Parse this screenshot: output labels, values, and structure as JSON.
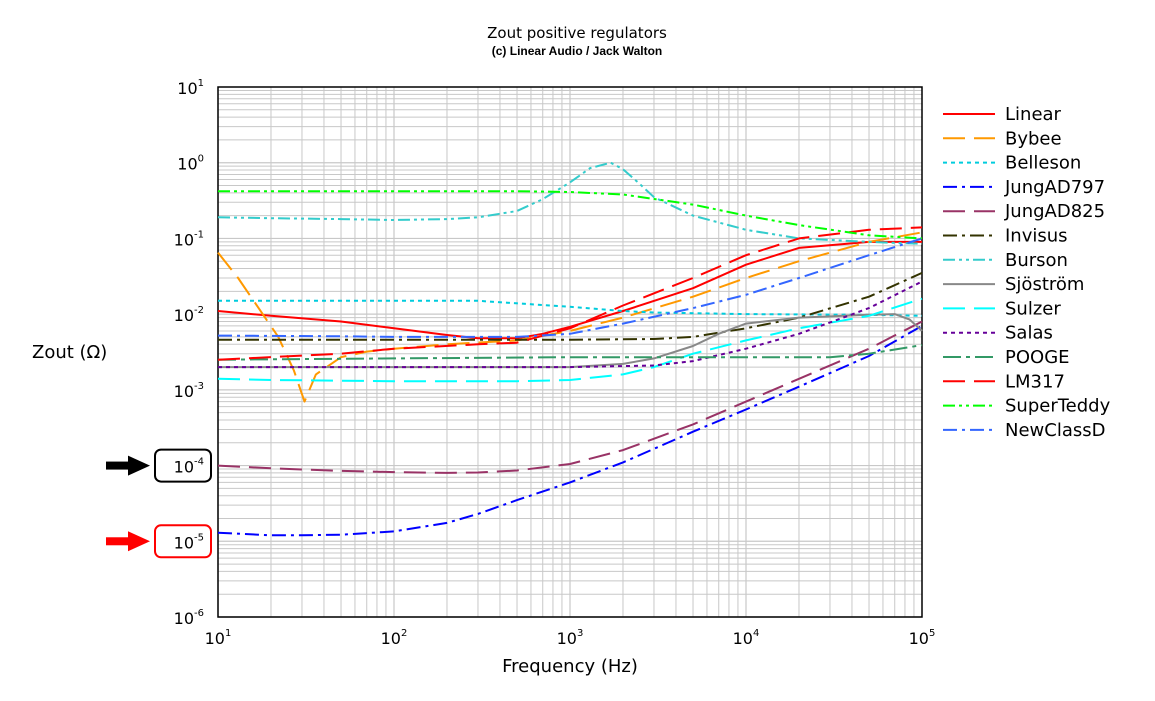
{
  "chart_data": {
    "type": "line",
    "title": "Zout positive regulators",
    "subtitle": "(c) Linear Audio / Jack Walton",
    "xlabel": "Frequency (Hz)",
    "ylabel": "Zout (Ω)",
    "xscale": "log",
    "yscale": "log",
    "xlim": [
      10,
      100000
    ],
    "ylim": [
      1e-06,
      10
    ],
    "grid": true,
    "legend_position": "right",
    "x_ticks": [
      {
        "value": 10,
        "base": "10",
        "exp": "1"
      },
      {
        "value": 100,
        "base": "10",
        "exp": "2"
      },
      {
        "value": 1000,
        "base": "10",
        "exp": "3"
      },
      {
        "value": 10000,
        "base": "10",
        "exp": "4"
      },
      {
        "value": 100000,
        "base": "10",
        "exp": "5"
      }
    ],
    "y_ticks": [
      {
        "value": 10,
        "base": "10",
        "exp": "1"
      },
      {
        "value": 1,
        "base": "10",
        "exp": "0"
      },
      {
        "value": 0.1,
        "base": "10",
        "exp": "-1"
      },
      {
        "value": 0.01,
        "base": "10",
        "exp": "-2"
      },
      {
        "value": 0.001,
        "base": "10",
        "exp": "-3"
      },
      {
        "value": 0.0001,
        "base": "10",
        "exp": "-4"
      },
      {
        "value": 1e-05,
        "base": "10",
        "exp": "-5"
      },
      {
        "value": 1e-06,
        "base": "10",
        "exp": "-6"
      }
    ],
    "highlighted_ticks": [
      {
        "value": 0.0001,
        "color": "#000000"
      },
      {
        "value": 1e-05,
        "color": "#ff0000"
      }
    ],
    "series": [
      {
        "name": "Linear",
        "color": "#ff0000",
        "dash": "solid",
        "points": [
          [
            10,
            0.011
          ],
          [
            20,
            0.0095
          ],
          [
            50,
            0.008
          ],
          [
            100,
            0.0065
          ],
          [
            200,
            0.0053
          ],
          [
            300,
            0.0048
          ],
          [
            500,
            0.0048
          ],
          [
            700,
            0.0055
          ],
          [
            1000,
            0.0068
          ],
          [
            2000,
            0.011
          ],
          [
            5000,
            0.022
          ],
          [
            10000,
            0.045
          ],
          [
            20000,
            0.075
          ],
          [
            50000,
            0.09
          ],
          [
            100000,
            0.09
          ]
        ]
      },
      {
        "name": "Bybee",
        "color": "#ff9900",
        "dash": "longdash",
        "points": [
          [
            10,
            0.065
          ],
          [
            13,
            0.03
          ],
          [
            17,
            0.012
          ],
          [
            22,
            0.005
          ],
          [
            27,
            0.0018
          ],
          [
            31,
            0.0007
          ],
          [
            36,
            0.0016
          ],
          [
            50,
            0.0027
          ],
          [
            70,
            0.0032
          ],
          [
            100,
            0.0035
          ],
          [
            200,
            0.004
          ],
          [
            500,
            0.0045
          ],
          [
            1000,
            0.006
          ],
          [
            2000,
            0.009
          ],
          [
            5000,
            0.017
          ],
          [
            10000,
            0.03
          ],
          [
            20000,
            0.05
          ],
          [
            50000,
            0.09
          ],
          [
            100000,
            0.12
          ]
        ]
      },
      {
        "name": "Belleson",
        "color": "#00ccdd",
        "dash": "dot",
        "points": [
          [
            10,
            0.015
          ],
          [
            100,
            0.015
          ],
          [
            300,
            0.015
          ],
          [
            1000,
            0.0125
          ],
          [
            2000,
            0.011
          ],
          [
            3000,
            0.0105
          ],
          [
            10000,
            0.01
          ],
          [
            50000,
            0.0098
          ],
          [
            100000,
            0.0095
          ]
        ]
      },
      {
        "name": "JungAD797",
        "color": "#0000ff",
        "dash": "dashdot",
        "points": [
          [
            10,
            1.3e-05
          ],
          [
            20,
            1.2e-05
          ],
          [
            30,
            1.2e-05
          ],
          [
            50,
            1.22e-05
          ],
          [
            100,
            1.35e-05
          ],
          [
            200,
            1.75e-05
          ],
          [
            300,
            2.3e-05
          ],
          [
            500,
            3.5e-05
          ],
          [
            1000,
            6e-05
          ],
          [
            2000,
            0.00011
          ],
          [
            5000,
            0.00028
          ],
          [
            10000,
            0.00055
          ],
          [
            20000,
            0.0011
          ],
          [
            50000,
            0.0028
          ],
          [
            100000,
            0.007
          ]
        ]
      },
      {
        "name": "JungAD825",
        "color": "#993366",
        "dash": "longdash",
        "points": [
          [
            10,
            0.0001
          ],
          [
            20,
            9.2e-05
          ],
          [
            50,
            8.5e-05
          ],
          [
            100,
            8.2e-05
          ],
          [
            200,
            8e-05
          ],
          [
            300,
            8.1e-05
          ],
          [
            500,
            8.6e-05
          ],
          [
            1000,
            0.000105
          ],
          [
            2000,
            0.00016
          ],
          [
            5000,
            0.00035
          ],
          [
            10000,
            0.0007
          ],
          [
            20000,
            0.0014
          ],
          [
            50000,
            0.0035
          ],
          [
            100000,
            0.008
          ]
        ]
      },
      {
        "name": "Invisus",
        "color": "#333300",
        "dash": "dashdot",
        "points": [
          [
            10,
            0.0046
          ],
          [
            100,
            0.0046
          ],
          [
            1000,
            0.0046
          ],
          [
            3000,
            0.0047
          ],
          [
            5000,
            0.005
          ],
          [
            10000,
            0.0065
          ],
          [
            20000,
            0.009
          ],
          [
            50000,
            0.017
          ],
          [
            100000,
            0.035
          ]
        ]
      },
      {
        "name": "Burson",
        "color": "#33cccc",
        "dash": "dashdotdot",
        "points": [
          [
            10,
            0.19
          ],
          [
            20,
            0.185
          ],
          [
            50,
            0.18
          ],
          [
            100,
            0.175
          ],
          [
            200,
            0.18
          ],
          [
            300,
            0.19
          ],
          [
            500,
            0.23
          ],
          [
            700,
            0.33
          ],
          [
            1000,
            0.55
          ],
          [
            1300,
            0.85
          ],
          [
            1700,
            1.0
          ],
          [
            2000,
            0.82
          ],
          [
            2500,
            0.52
          ],
          [
            3000,
            0.35
          ],
          [
            5000,
            0.2
          ],
          [
            10000,
            0.13
          ],
          [
            20000,
            0.1
          ],
          [
            50000,
            0.09
          ],
          [
            100000,
            0.085
          ]
        ]
      },
      {
        "name": "Sjöström",
        "color": "#888888",
        "dash": "solid",
        "points": [
          [
            10,
            0.002
          ],
          [
            100,
            0.002
          ],
          [
            1000,
            0.002
          ],
          [
            2000,
            0.0022
          ],
          [
            3000,
            0.0026
          ],
          [
            5000,
            0.0038
          ],
          [
            7000,
            0.0055
          ],
          [
            10000,
            0.0075
          ],
          [
            20000,
            0.009
          ],
          [
            50000,
            0.0098
          ],
          [
            70000,
            0.01
          ],
          [
            85000,
            0.0085
          ],
          [
            100000,
            0.006
          ]
        ]
      },
      {
        "name": "Sulzer",
        "color": "#00ffff",
        "dash": "longdash",
        "points": [
          [
            10,
            0.0014
          ],
          [
            20,
            0.00135
          ],
          [
            100,
            0.0013
          ],
          [
            500,
            0.0013
          ],
          [
            1000,
            0.00135
          ],
          [
            2000,
            0.0016
          ],
          [
            3000,
            0.002
          ],
          [
            5000,
            0.003
          ],
          [
            10000,
            0.0045
          ],
          [
            20000,
            0.0065
          ],
          [
            50000,
            0.0095
          ],
          [
            100000,
            0.016
          ]
        ]
      },
      {
        "name": "Salas",
        "color": "#660099",
        "dash": "dot",
        "points": [
          [
            10,
            0.002
          ],
          [
            100,
            0.002
          ],
          [
            1000,
            0.002
          ],
          [
            3000,
            0.0021
          ],
          [
            5000,
            0.0024
          ],
          [
            10000,
            0.0035
          ],
          [
            20000,
            0.0055
          ],
          [
            50000,
            0.012
          ],
          [
            100000,
            0.027
          ]
        ]
      },
      {
        "name": "POOGE",
        "color": "#339966",
        "dash": "longdashdot",
        "points": [
          [
            10,
            0.0025
          ],
          [
            100,
            0.0026
          ],
          [
            1000,
            0.0027
          ],
          [
            10000,
            0.0027
          ],
          [
            30000,
            0.0027
          ],
          [
            50000,
            0.003
          ],
          [
            100000,
            0.0039
          ]
        ]
      },
      {
        "name": "LM317",
        "color": "#ff0000",
        "dash": "longdash",
        "points": [
          [
            10,
            0.0025
          ],
          [
            50,
            0.003
          ],
          [
            100,
            0.0035
          ],
          [
            300,
            0.004
          ],
          [
            500,
            0.0042
          ],
          [
            1000,
            0.0065
          ],
          [
            2000,
            0.013
          ],
          [
            5000,
            0.03
          ],
          [
            10000,
            0.06
          ],
          [
            20000,
            0.1
          ],
          [
            50000,
            0.13
          ],
          [
            100000,
            0.14
          ]
        ]
      },
      {
        "name": "SuperTeddy",
        "color": "#00ff00",
        "dash": "dashdotdot",
        "points": [
          [
            10,
            0.42
          ],
          [
            100,
            0.42
          ],
          [
            500,
            0.42
          ],
          [
            1000,
            0.41
          ],
          [
            2000,
            0.38
          ],
          [
            5000,
            0.28
          ],
          [
            10000,
            0.2
          ],
          [
            20000,
            0.15
          ],
          [
            50000,
            0.11
          ],
          [
            100000,
            0.1
          ]
        ]
      },
      {
        "name": "NewClassD",
        "color": "#3366ff",
        "dash": "dashdot",
        "points": [
          [
            10,
            0.0052
          ],
          [
            50,
            0.0051
          ],
          [
            100,
            0.005
          ],
          [
            500,
            0.005
          ],
          [
            1000,
            0.0055
          ],
          [
            2000,
            0.0075
          ],
          [
            5000,
            0.012
          ],
          [
            10000,
            0.018
          ],
          [
            20000,
            0.03
          ],
          [
            50000,
            0.06
          ],
          [
            100000,
            0.1
          ]
        ]
      }
    ]
  }
}
